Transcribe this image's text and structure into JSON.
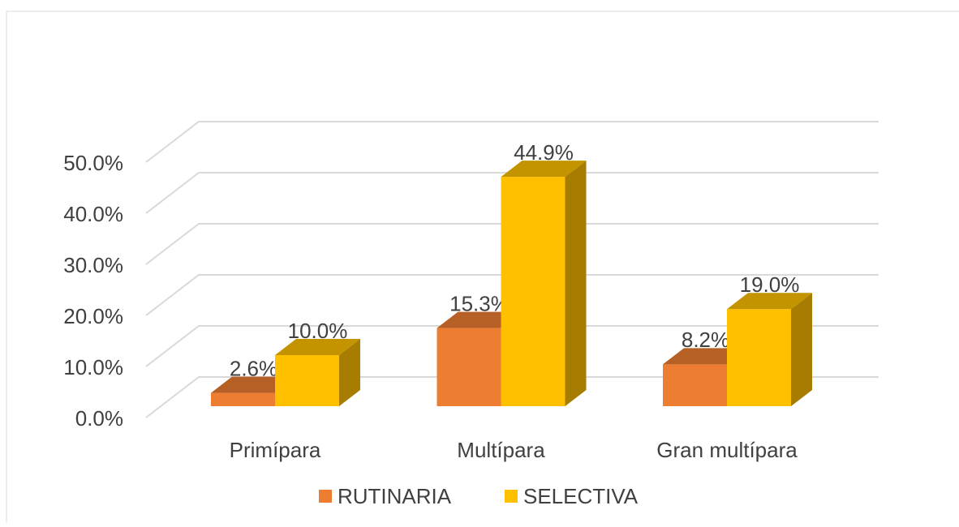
{
  "chart_data": {
    "type": "bar3d",
    "categories": [
      "Primípara",
      "Multípara",
      "Gran multípara"
    ],
    "series": [
      {
        "name": "RUTINARIA",
        "color": "#ed7d31",
        "values": [
          2.6,
          15.3,
          8.2
        ],
        "value_labels": [
          "2.6%",
          "15.3%",
          "8.2%"
        ]
      },
      {
        "name": "SELECTIVA",
        "color": "#ffc000",
        "values": [
          10.0,
          44.9,
          19.0
        ],
        "value_labels": [
          "10.0%",
          "44.9%",
          "19.0%"
        ]
      }
    ],
    "ylim": [
      0,
      50
    ],
    "yticks": [
      {
        "value": 0,
        "label": "0.0%"
      },
      {
        "value": 10,
        "label": "10.0%"
      },
      {
        "value": 20,
        "label": "20.0%"
      },
      {
        "value": 30,
        "label": "30.0%"
      },
      {
        "value": 40,
        "label": "40.0%"
      },
      {
        "value": 50,
        "label": "50.0%"
      }
    ],
    "grid": true,
    "legend": "bottom"
  }
}
